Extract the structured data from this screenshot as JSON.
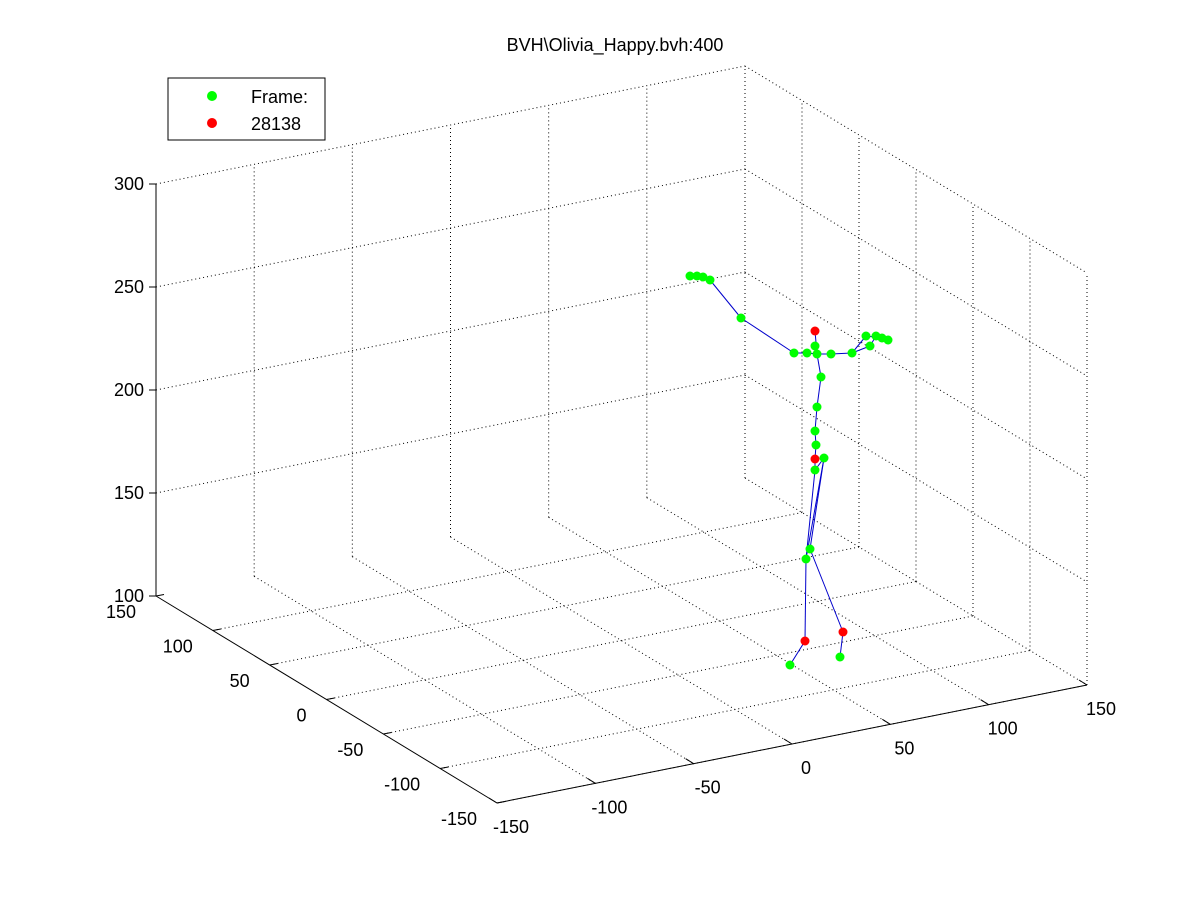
{
  "chart_data": {
    "type": "scatter",
    "title": "BVH\\Olivia_Happy.bvh:400",
    "xlabel": "",
    "ylabel": "",
    "zlabel": "",
    "grid": true,
    "legend": {
      "placement": "top-left",
      "entries": [
        {
          "label": "Frame:",
          "color": "#00ff00"
        },
        {
          "label": "28138",
          "color": "#ff0000"
        }
      ]
    },
    "axes": {
      "x": {
        "range": [
          -150,
          150
        ],
        "ticks": [
          "-150",
          "-100",
          "-50",
          "0",
          "50",
          "100",
          "150"
        ]
      },
      "y": {
        "range": [
          -150,
          150
        ],
        "ticks": [
          "-150",
          "-100",
          "-50",
          "0",
          "50",
          "100",
          "150"
        ]
      },
      "z": {
        "range": [
          100,
          300
        ],
        "ticks": [
          "100",
          "150",
          "200",
          "250",
          "300"
        ]
      }
    },
    "series": [
      {
        "name": "Frame:",
        "color": "#00ff00",
        "points": [
          [
            806,
            559
          ],
          [
            810,
            549
          ],
          [
            815,
            470
          ],
          [
            816,
            445
          ],
          [
            815,
            431
          ],
          [
            824,
            458
          ],
          [
            817,
            407
          ],
          [
            821,
            377
          ],
          [
            815,
            346
          ],
          [
            817,
            354
          ],
          [
            807,
            353
          ],
          [
            794,
            353
          ],
          [
            831,
            354
          ],
          [
            852,
            353
          ],
          [
            866,
            336
          ],
          [
            870,
            346
          ],
          [
            876,
            336
          ],
          [
            882,
            338
          ],
          [
            888,
            340
          ],
          [
            741,
            318
          ],
          [
            710,
            280
          ],
          [
            690,
            276
          ],
          [
            697,
            276
          ],
          [
            703,
            277
          ],
          [
            790,
            665
          ],
          [
            840,
            657
          ]
        ]
      },
      {
        "name": "28138",
        "color": "#ff0000",
        "points": [
          [
            815,
            331
          ],
          [
            815,
            459
          ],
          [
            805,
            641
          ],
          [
            843,
            632
          ]
        ]
      }
    ],
    "skeleton_color": "#0000cc"
  }
}
